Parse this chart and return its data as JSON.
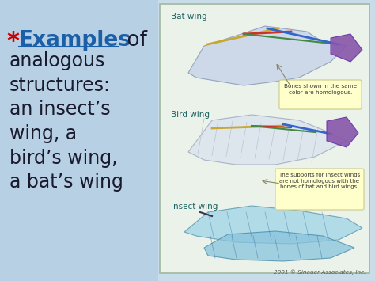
{
  "bg_left_color": "#b8d4e8",
  "right_panel_bg": "#eaf2ea",
  "right_panel_border": "#a0b8a0",
  "asterisk_color": "#cc0000",
  "examples_color": "#1a5fa8",
  "main_text_color": "#1a1a2e",
  "examples_word": "Examples",
  "label_bat": "Bat wing",
  "label_bird": "Bird wing",
  "label_insect": "Insect wing",
  "callout1": "Bones shown in the same\ncolor are homologous.",
  "callout2": "The supports for insect wings\nare not homologous with the\nbones of bat and bird wings.",
  "footer": "2001 © Sinauer Associates, Inc.",
  "footer_color": "#555555",
  "label_color": "#1a6060",
  "callout_bg": "#ffffcc",
  "callout_border": "#cccc88",
  "callout_text_color": "#333333"
}
